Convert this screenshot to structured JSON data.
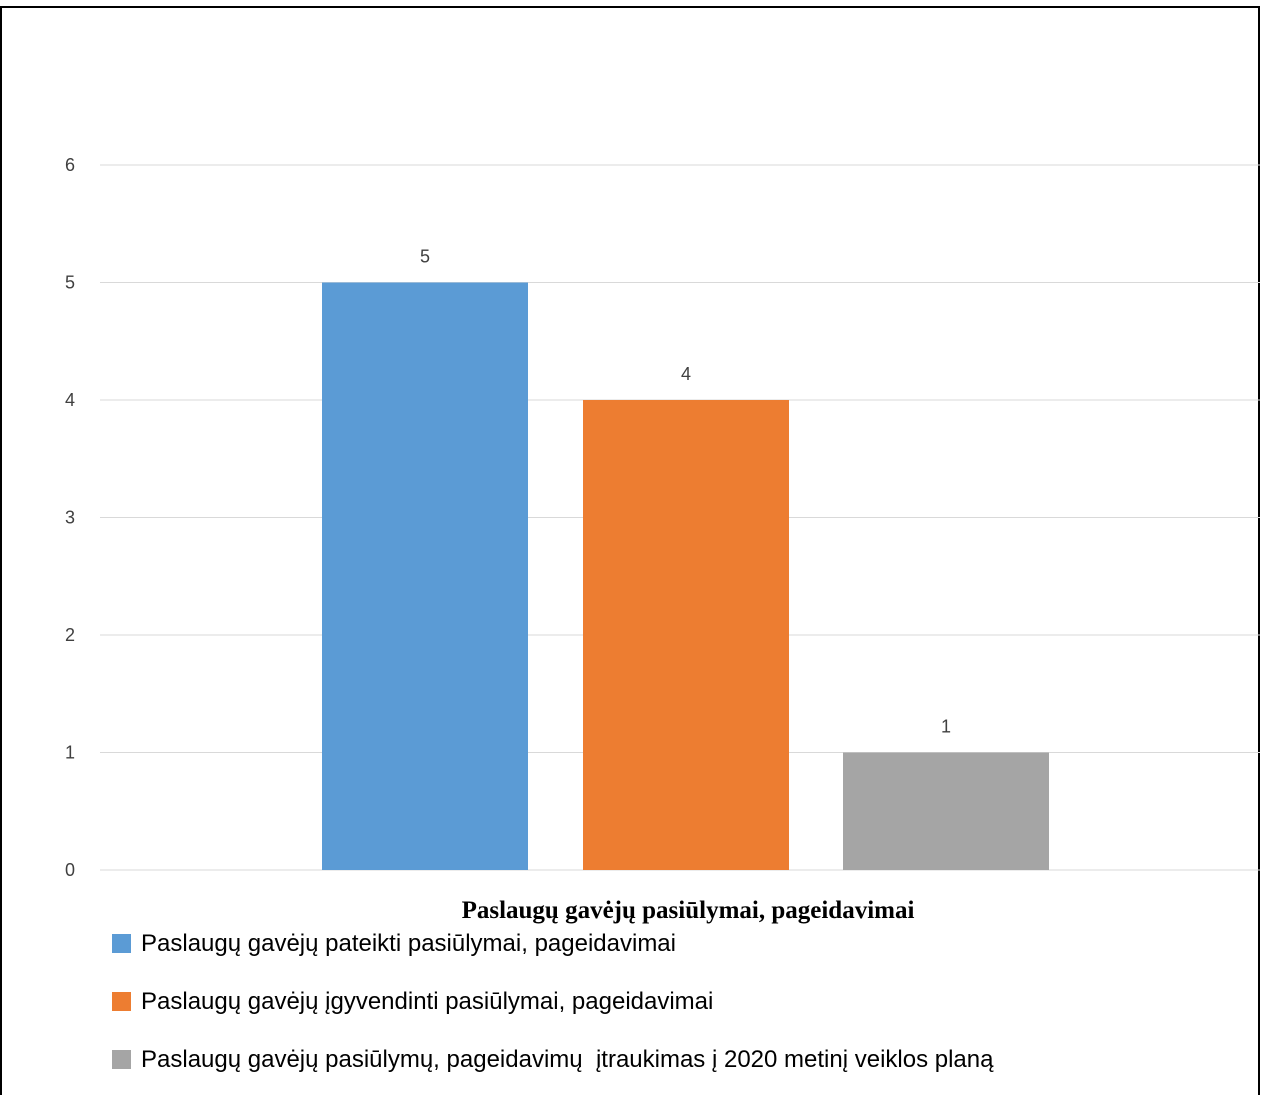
{
  "chart_data": {
    "type": "bar",
    "categories": [
      "Paslaugų gavėjų pasiūlymai, pageidavimai"
    ],
    "series": [
      {
        "name": "Paslaugų gavėjų pateikti pasiūlymai, pageidavimai",
        "values": [
          5
        ],
        "color": "#5b9bd5"
      },
      {
        "name": "Paslaugų gavėjų įgyvendinti pasiūlymai, pageidavimai",
        "values": [
          4
        ],
        "color": "#ed7d31"
      },
      {
        "name": "Paslaugų gavėjų pasiūlymų, pageidavimų  įtraukimas į 2020 metinį veiklos planą",
        "values": [
          1
        ],
        "color": "#a5a5a5"
      }
    ],
    "ylim": [
      0,
      6
    ],
    "yticks": [
      "0",
      "1",
      "2",
      "3",
      "4",
      "5",
      "6"
    ],
    "data_labels": [
      "5",
      "4",
      "1"
    ],
    "grid": true,
    "legend_position": "bottom-left"
  }
}
